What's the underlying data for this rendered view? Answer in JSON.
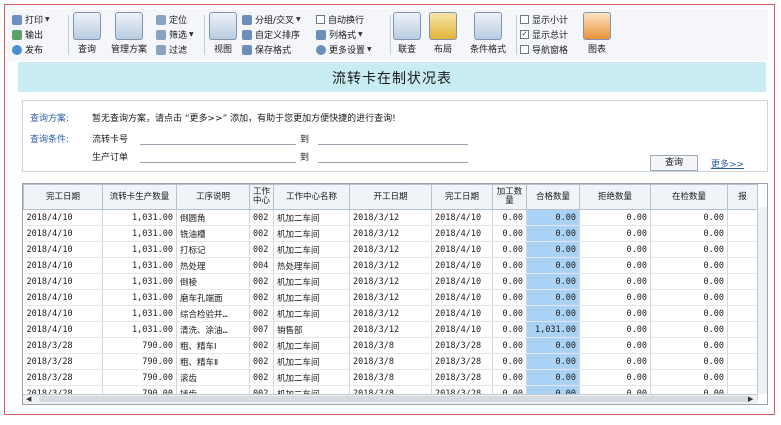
{
  "ribbon": {
    "print": "打印",
    "export": "输出",
    "publish": "发布",
    "query": "查询",
    "scheme": "管理方案",
    "locate": "定位",
    "filter": "筛选",
    "filter_out": "过滤",
    "view": "视图",
    "group": "分组/交叉",
    "auto_wrap": "自动换行",
    "custom_sort": "自定义排序",
    "col_format": "列格式",
    "save_format": "保存格式",
    "more_settings": "更多设置",
    "link": "联查",
    "layout": "布局",
    "cond_format": "条件格式",
    "show_subtotal": "显示小计",
    "show_total": "显示总计",
    "nav_pane": "导航窗格",
    "chart": "图表"
  },
  "title": "流转卡在制状况表",
  "query": {
    "scheme_label": "查询方案:",
    "scheme_text": "暂无查询方案，请点击 “更多>>” 添加，有助于您更加方便快捷的进行查询!",
    "cond_label": "查询条件:",
    "card_no": "流转卡号",
    "order": "生产订单",
    "to": "到",
    "to2": "到",
    "search_btn": "查询",
    "more_link": "更多>>"
  },
  "table": {
    "headers": [
      "完工日期",
      "流转卡生产数量",
      "工序说明",
      "工作中心",
      "工作中心名称",
      "开工日期",
      "完工日期",
      "加工数量",
      "合格数量",
      "拒绝数量",
      "在检数量",
      "报"
    ],
    "rows": [
      [
        "2018/4/10",
        "1,031.00",
        "倒圆角",
        "002",
        "机加二车间",
        "2018/3/12",
        "2018/4/10",
        "0.00",
        "0.00",
        "0.00",
        "0.00",
        ""
      ],
      [
        "2018/4/10",
        "1,031.00",
        "铣油槽",
        "002",
        "机加二车间",
        "2018/3/12",
        "2018/4/10",
        "0.00",
        "0.00",
        "0.00",
        "0.00",
        ""
      ],
      [
        "2018/4/10",
        "1,031.00",
        "打标记",
        "002",
        "机加二车间",
        "2018/3/12",
        "2018/4/10",
        "0.00",
        "0.00",
        "0.00",
        "0.00",
        ""
      ],
      [
        "2018/4/10",
        "1,031.00",
        "热处理",
        "004",
        "热处理车间",
        "2018/3/12",
        "2018/4/10",
        "0.00",
        "0.00",
        "0.00",
        "0.00",
        ""
      ],
      [
        "2018/4/10",
        "1,031.00",
        "倒棱",
        "002",
        "机加二车间",
        "2018/3/12",
        "2018/4/10",
        "0.00",
        "0.00",
        "0.00",
        "0.00",
        ""
      ],
      [
        "2018/4/10",
        "1,031.00",
        "磨车孔端面",
        "002",
        "机加二车间",
        "2018/3/12",
        "2018/4/10",
        "0.00",
        "0.00",
        "0.00",
        "0.00",
        ""
      ],
      [
        "2018/4/10",
        "1,031.00",
        "综合检验并…",
        "002",
        "机加二车间",
        "2018/3/12",
        "2018/4/10",
        "0.00",
        "0.00",
        "0.00",
        "0.00",
        ""
      ],
      [
        "2018/4/10",
        "1,031.00",
        "清洗、涂油…",
        "007",
        "销售部",
        "2018/3/12",
        "2018/4/10",
        "0.00",
        "1,031.00",
        "0.00",
        "0.00",
        ""
      ],
      [
        "2018/3/28",
        "790.00",
        "粗、精车Ⅰ",
        "002",
        "机加二车间",
        "2018/3/8",
        "2018/3/28",
        "0.00",
        "0.00",
        "0.00",
        "0.00",
        ""
      ],
      [
        "2018/3/28",
        "790.00",
        "粗、精车Ⅱ",
        "002",
        "机加二车间",
        "2018/3/8",
        "2018/3/28",
        "0.00",
        "0.00",
        "0.00",
        "0.00",
        ""
      ],
      [
        "2018/3/28",
        "790.00",
        "滚齿",
        "002",
        "机加二车间",
        "2018/3/8",
        "2018/3/28",
        "0.00",
        "0.00",
        "0.00",
        "0.00",
        ""
      ],
      [
        "2018/3/28",
        "790.00",
        "插齿",
        "002",
        "机加二车间",
        "2018/3/8",
        "2018/3/28",
        "0.00",
        "0.00",
        "0.00",
        "0.00",
        ""
      ]
    ]
  },
  "colors": {
    "title_band": "#c7ecf2",
    "highlight": "#a9d2f4",
    "link": "#2b60a8",
    "frame": "#d35a63"
  }
}
